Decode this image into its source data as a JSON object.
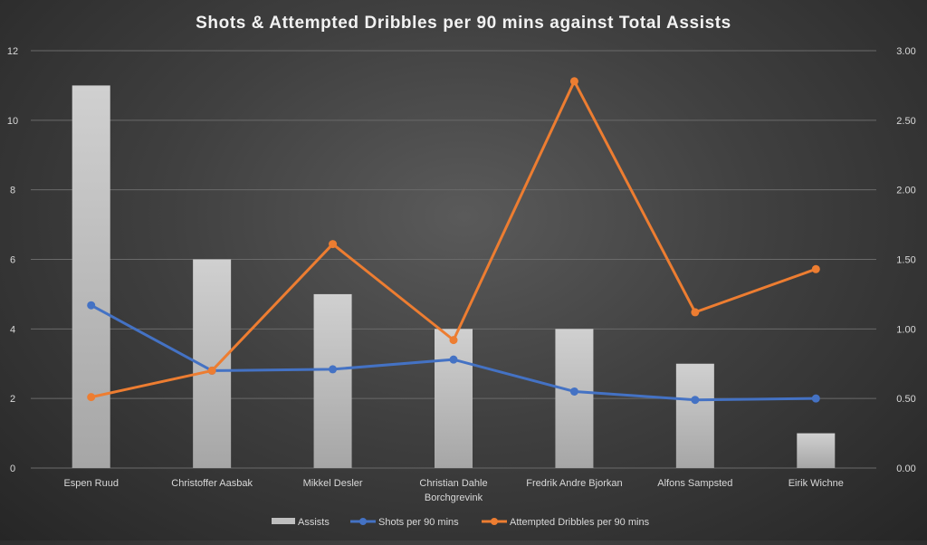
{
  "chart_data": {
    "type": "bar",
    "title": "Shots & Attempted Dribbles per 90 mins against Total Assists",
    "categories": [
      [
        "Espen Ruud"
      ],
      [
        "Christoffer Aasbak"
      ],
      [
        "Mikkel Desler"
      ],
      [
        "Christian Dahle",
        "Borchgrevink"
      ],
      [
        "Fredrik Andre Bjorkan"
      ],
      [
        "Alfons Sampsted"
      ],
      [
        "Eirik Wichne"
      ]
    ],
    "y_left": {
      "ylim": [
        0,
        12
      ],
      "ticks": [
        "0",
        "2",
        "4",
        "6",
        "8",
        "10",
        "12"
      ]
    },
    "y_right": {
      "ylim": [
        0,
        3
      ],
      "ticks": [
        "0.00",
        "0.50",
        "1.00",
        "1.50",
        "2.00",
        "2.50",
        "3.00"
      ]
    },
    "grid": true,
    "legend_position": "bottom",
    "series": [
      {
        "name": "Assists",
        "kind": "bar",
        "axis": "left",
        "color": "#bfbfbf",
        "values": [
          11,
          6,
          5,
          4,
          4,
          3,
          1
        ]
      },
      {
        "name": "Shots per 90 mins",
        "kind": "line",
        "axis": "right",
        "color": "#4472c4",
        "values": [
          1.17,
          0.7,
          0.71,
          0.78,
          0.55,
          0.49,
          0.5
        ]
      },
      {
        "name": "Attempted Dribbles per 90 mins",
        "kind": "line",
        "axis": "right",
        "color": "#ed7d31",
        "values": [
          0.51,
          0.7,
          1.61,
          0.92,
          2.78,
          1.12,
          1.43
        ]
      }
    ]
  }
}
